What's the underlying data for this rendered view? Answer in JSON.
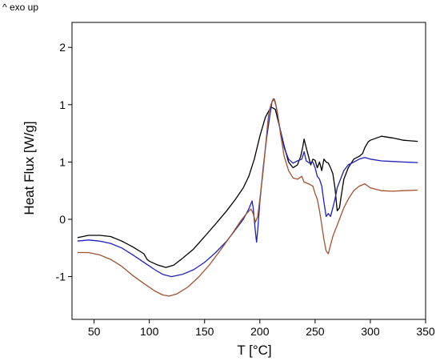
{
  "annotation": "^ exo up",
  "chart_data": {
    "type": "line",
    "xlabel": "T [°C]",
    "ylabel": "Heat Flux [W/g]",
    "xlim": [
      30,
      350
    ],
    "xticks": [
      "50",
      "100",
      "150",
      "200",
      "250",
      "300",
      "350"
    ],
    "yticks": [
      "-1",
      "0",
      "1",
      "1",
      "2"
    ],
    "grid": false,
    "legend": "none",
    "series": [
      {
        "color": "#000000",
        "points": [
          [
            35,
            -0.32
          ],
          [
            45,
            -0.28
          ],
          [
            55,
            -0.28
          ],
          [
            65,
            -0.3
          ],
          [
            75,
            -0.38
          ],
          [
            85,
            -0.48
          ],
          [
            95,
            -0.6
          ],
          [
            98,
            -0.7
          ],
          [
            100,
            -0.73
          ],
          [
            108,
            -0.8
          ],
          [
            115,
            -0.84
          ],
          [
            122,
            -0.8
          ],
          [
            130,
            -0.68
          ],
          [
            140,
            -0.52
          ],
          [
            150,
            -0.3
          ],
          [
            160,
            -0.08
          ],
          [
            170,
            0.15
          ],
          [
            178,
            0.35
          ],
          [
            185,
            0.55
          ],
          [
            190,
            0.75
          ],
          [
            195,
            1.05
          ],
          [
            200,
            1.45
          ],
          [
            205,
            1.78
          ],
          [
            210,
            1.96
          ],
          [
            214,
            1.92
          ],
          [
            218,
            1.6
          ],
          [
            222,
            1.28
          ],
          [
            226,
            1.0
          ],
          [
            230,
            0.9
          ],
          [
            234,
            0.95
          ],
          [
            237,
            1.1
          ],
          [
            239,
            1.28
          ],
          [
            240,
            1.4
          ],
          [
            242,
            1.25
          ],
          [
            244,
            1.1
          ],
          [
            246,
            0.95
          ],
          [
            248,
            1.05
          ],
          [
            250,
            1.03
          ],
          [
            252,
            0.9
          ],
          [
            254,
            1.0
          ],
          [
            256,
            0.85
          ],
          [
            258,
            1.05
          ],
          [
            260,
            1.0
          ],
          [
            262,
            0.98
          ],
          [
            264,
            0.9
          ],
          [
            266,
            0.8
          ],
          [
            268,
            0.55
          ],
          [
            270,
            0.15
          ],
          [
            272,
            0.2
          ],
          [
            274,
            0.45
          ],
          [
            276,
            0.7
          ],
          [
            280,
            0.9
          ],
          [
            285,
            1.05
          ],
          [
            290,
            1.1
          ],
          [
            293,
            1.15
          ],
          [
            295,
            1.25
          ],
          [
            298,
            1.35
          ],
          [
            300,
            1.38
          ],
          [
            310,
            1.45
          ],
          [
            320,
            1.42
          ],
          [
            330,
            1.38
          ],
          [
            343,
            1.36
          ]
        ]
      },
      {
        "color": "#1f1fbf",
        "points": [
          [
            35,
            -0.38
          ],
          [
            45,
            -0.36
          ],
          [
            55,
            -0.38
          ],
          [
            65,
            -0.42
          ],
          [
            75,
            -0.5
          ],
          [
            85,
            -0.62
          ],
          [
            95,
            -0.75
          ],
          [
            105,
            -0.88
          ],
          [
            112,
            -0.96
          ],
          [
            120,
            -1.0
          ],
          [
            130,
            -0.96
          ],
          [
            140,
            -0.88
          ],
          [
            150,
            -0.75
          ],
          [
            160,
            -0.58
          ],
          [
            170,
            -0.38
          ],
          [
            178,
            -0.18
          ],
          [
            185,
            0.0
          ],
          [
            190,
            0.18
          ],
          [
            193,
            0.32
          ],
          [
            194,
            0.2
          ],
          [
            196,
            -0.22
          ],
          [
            197,
            -0.4
          ],
          [
            198,
            -0.2
          ],
          [
            200,
            0.3
          ],
          [
            203,
            0.9
          ],
          [
            206,
            1.4
          ],
          [
            209,
            1.8
          ],
          [
            211,
            2.05
          ],
          [
            213,
            2.1
          ],
          [
            215,
            1.95
          ],
          [
            218,
            1.6
          ],
          [
            222,
            1.25
          ],
          [
            226,
            1.05
          ],
          [
            230,
            0.98
          ],
          [
            234,
            1.02
          ],
          [
            238,
            1.05
          ],
          [
            240,
            1.18
          ],
          [
            242,
            1.02
          ],
          [
            245,
            0.98
          ],
          [
            248,
            1.0
          ],
          [
            250,
            0.9
          ],
          [
            252,
            0.75
          ],
          [
            254,
            0.7
          ],
          [
            256,
            0.58
          ],
          [
            258,
            0.3
          ],
          [
            260,
            0.05
          ],
          [
            262,
            0.1
          ],
          [
            264,
            0.05
          ],
          [
            266,
            0.2
          ],
          [
            268,
            0.35
          ],
          [
            270,
            0.55
          ],
          [
            273,
            0.7
          ],
          [
            276,
            0.85
          ],
          [
            280,
            0.95
          ],
          [
            285,
            1.0
          ],
          [
            290,
            1.05
          ],
          [
            295,
            1.08
          ],
          [
            300,
            1.05
          ],
          [
            310,
            1.02
          ],
          [
            320,
            1.01
          ],
          [
            330,
            1.0
          ],
          [
            343,
            0.99
          ]
        ]
      },
      {
        "color": "#a0522d",
        "points": [
          [
            35,
            -0.58
          ],
          [
            45,
            -0.58
          ],
          [
            55,
            -0.62
          ],
          [
            65,
            -0.7
          ],
          [
            75,
            -0.82
          ],
          [
            85,
            -0.98
          ],
          [
            95,
            -1.12
          ],
          [
            105,
            -1.25
          ],
          [
            112,
            -1.32
          ],
          [
            118,
            -1.34
          ],
          [
            125,
            -1.3
          ],
          [
            135,
            -1.18
          ],
          [
            145,
            -1.0
          ],
          [
            155,
            -0.78
          ],
          [
            165,
            -0.52
          ],
          [
            175,
            -0.25
          ],
          [
            183,
            -0.02
          ],
          [
            188,
            0.1
          ],
          [
            192,
            0.18
          ],
          [
            194,
            0.1
          ],
          [
            196,
            -0.05
          ],
          [
            198,
            0.05
          ],
          [
            200,
            0.35
          ],
          [
            203,
            0.85
          ],
          [
            206,
            1.45
          ],
          [
            208,
            1.85
          ],
          [
            210,
            2.0
          ],
          [
            212,
            2.1
          ],
          [
            214,
            2.05
          ],
          [
            216,
            1.85
          ],
          [
            219,
            1.45
          ],
          [
            222,
            1.1
          ],
          [
            226,
            0.85
          ],
          [
            230,
            0.72
          ],
          [
            234,
            0.7
          ],
          [
            238,
            0.75
          ],
          [
            240,
            0.65
          ],
          [
            244,
            0.62
          ],
          [
            248,
            0.58
          ],
          [
            250,
            0.45
          ],
          [
            252,
            0.35
          ],
          [
            254,
            0.15
          ],
          [
            256,
            -0.1
          ],
          [
            258,
            -0.35
          ],
          [
            260,
            -0.55
          ],
          [
            262,
            -0.6
          ],
          [
            264,
            -0.45
          ],
          [
            266,
            -0.3
          ],
          [
            268,
            -0.2
          ],
          [
            270,
            -0.1
          ],
          [
            272,
            0.0
          ],
          [
            276,
            0.2
          ],
          [
            280,
            0.35
          ],
          [
            285,
            0.5
          ],
          [
            290,
            0.58
          ],
          [
            295,
            0.62
          ],
          [
            300,
            0.55
          ],
          [
            310,
            0.5
          ],
          [
            320,
            0.49
          ],
          [
            330,
            0.5
          ],
          [
            343,
            0.51
          ]
        ]
      }
    ]
  }
}
